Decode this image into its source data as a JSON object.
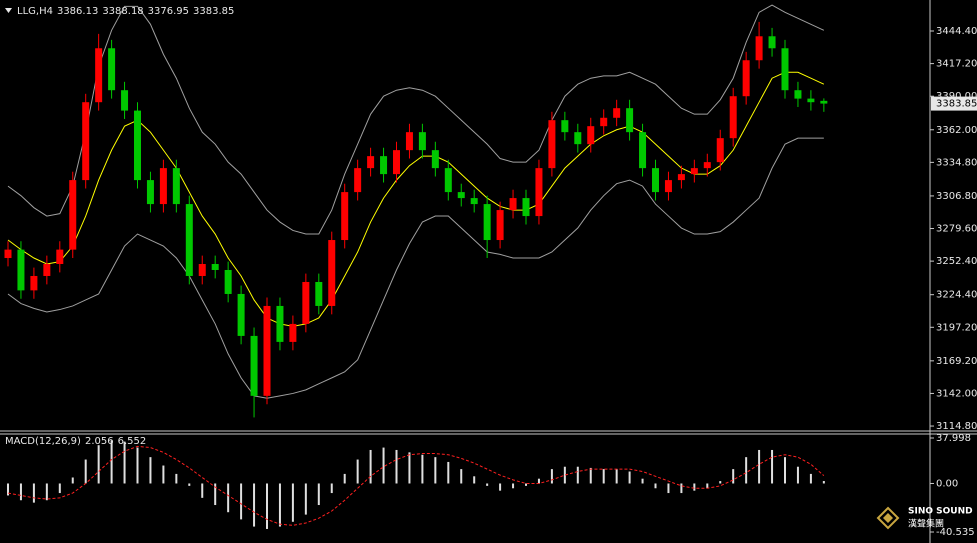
{
  "chart_data": [
    {
      "type": "candlestick",
      "title": "LLG,H4",
      "up_color": "#ff0000",
      "down_color": "#00c800",
      "open": [
        3255,
        3262,
        3228,
        3240,
        3250,
        3262,
        3320,
        3385,
        3430,
        3395,
        3378,
        3320,
        3300,
        3330,
        3300,
        3240,
        3250,
        3245,
        3225,
        3190,
        3140,
        3215,
        3185,
        3200,
        3235,
        3215,
        3270,
        3310,
        3330,
        3340,
        3325,
        3345,
        3360,
        3345,
        3330,
        3310,
        3305,
        3300,
        3270,
        3295,
        3305,
        3290,
        3330,
        3370,
        3360,
        3350,
        3365,
        3372,
        3380,
        3360,
        3330,
        3310,
        3320,
        3325,
        3330,
        3335,
        3355,
        3390,
        3420,
        3440,
        3430,
        3395,
        3388,
        3386.13
      ],
      "high": [
        3269,
        3269,
        3247,
        3257,
        3269,
        3327,
        3392,
        3442,
        3437,
        3402,
        3385,
        3327,
        3337,
        3337,
        3307,
        3257,
        3257,
        3252,
        3232,
        3197,
        3222,
        3222,
        3207,
        3242,
        3242,
        3277,
        3317,
        3337,
        3347,
        3347,
        3352,
        3367,
        3367,
        3352,
        3337,
        3317,
        3312,
        3307,
        3302,
        3312,
        3312,
        3337,
        3377,
        3377,
        3367,
        3372,
        3379,
        3387,
        3387,
        3367,
        3337,
        3327,
        3332,
        3337,
        3342,
        3362,
        3397,
        3427,
        3452,
        3447,
        3437,
        3402,
        3395,
        3388.18
      ],
      "low": [
        3248,
        3221,
        3221,
        3233,
        3243,
        3255,
        3313,
        3378,
        3388,
        3371,
        3313,
        3293,
        3293,
        3293,
        3233,
        3233,
        3238,
        3218,
        3183,
        3122,
        3133,
        3178,
        3178,
        3193,
        3208,
        3208,
        3263,
        3303,
        3323,
        3318,
        3318,
        3338,
        3338,
        3323,
        3303,
        3298,
        3293,
        3255,
        3263,
        3288,
        3283,
        3283,
        3323,
        3353,
        3343,
        3343,
        3358,
        3365,
        3353,
        3323,
        3303,
        3303,
        3313,
        3318,
        3323,
        3328,
        3348,
        3383,
        3413,
        3423,
        3388,
        3381,
        3378,
        3376.95
      ],
      "close": [
        3262,
        3228,
        3240,
        3250,
        3262,
        3320,
        3385,
        3430,
        3395,
        3378,
        3320,
        3300,
        3330,
        3300,
        3240,
        3250,
        3245,
        3225,
        3190,
        3140,
        3215,
        3185,
        3200,
        3235,
        3215,
        3270,
        3310,
        3330,
        3340,
        3325,
        3345,
        3360,
        3345,
        3330,
        3310,
        3305,
        3300,
        3270,
        3295,
        3305,
        3290,
        3330,
        3370,
        3360,
        3350,
        3365,
        3372,
        3380,
        3360,
        3330,
        3310,
        3320,
        3325,
        3330,
        3335,
        3355,
        3390,
        3420,
        3440,
        3430,
        3395,
        3388,
        3385,
        3383.85
      ],
      "bands": {
        "color": "#a0a0a0",
        "middle_color": "#ffff00",
        "upper": [
          3315,
          3307,
          3297,
          3290,
          3292,
          3315,
          3360,
          3415,
          3445,
          3465,
          3465,
          3450,
          3425,
          3405,
          3380,
          3360,
          3350,
          3335,
          3325,
          3310,
          3295,
          3285,
          3278,
          3275,
          3275,
          3295,
          3325,
          3350,
          3375,
          3390,
          3395,
          3397,
          3395,
          3390,
          3380,
          3370,
          3360,
          3350,
          3338,
          3335,
          3335,
          3345,
          3370,
          3390,
          3400,
          3405,
          3407,
          3407,
          3410,
          3405,
          3400,
          3390,
          3380,
          3375,
          3375,
          3387,
          3405,
          3435,
          3460,
          3466,
          3460,
          3455,
          3450,
          3445
        ],
        "middle": [
          3270,
          3262,
          3255,
          3250,
          3252,
          3265,
          3290,
          3320,
          3345,
          3365,
          3370,
          3360,
          3345,
          3330,
          3310,
          3290,
          3275,
          3255,
          3240,
          3220,
          3205,
          3200,
          3198,
          3200,
          3205,
          3220,
          3240,
          3260,
          3285,
          3305,
          3320,
          3332,
          3340,
          3340,
          3335,
          3325,
          3315,
          3305,
          3298,
          3295,
          3295,
          3300,
          3315,
          3330,
          3340,
          3350,
          3357,
          3362,
          3365,
          3360,
          3350,
          3340,
          3330,
          3325,
          3325,
          3332,
          3345,
          3365,
          3385,
          3405,
          3410,
          3410,
          3405,
          3400
        ],
        "lower": [
          3225,
          3217,
          3213,
          3210,
          3212,
          3215,
          3220,
          3225,
          3245,
          3265,
          3275,
          3270,
          3265,
          3255,
          3240,
          3220,
          3200,
          3175,
          3155,
          3140,
          3138,
          3140,
          3142,
          3145,
          3150,
          3155,
          3160,
          3170,
          3195,
          3220,
          3245,
          3267,
          3285,
          3290,
          3290,
          3280,
          3270,
          3260,
          3258,
          3255,
          3255,
          3255,
          3260,
          3270,
          3280,
          3295,
          3307,
          3317,
          3320,
          3315,
          3300,
          3290,
          3280,
          3275,
          3275,
          3277,
          3285,
          3295,
          3305,
          3330,
          3350,
          3355,
          3355,
          3355
        ]
      },
      "ylim": [
        3111.5,
        3468.6
      ],
      "yticks": [
        {
          "value": 3444.4,
          "label": "3444.40"
        },
        {
          "value": 3417.2,
          "label": "3417.20"
        },
        {
          "value": 3390,
          "label": "3390.00"
        },
        {
          "value": 3362,
          "label": "3362.00"
        },
        {
          "value": 3334.8,
          "label": "3334.80"
        },
        {
          "value": 3306.8,
          "label": "3306.80"
        },
        {
          "value": 3279.6,
          "label": "3279.60"
        },
        {
          "value": 3252.4,
          "label": "3252.40"
        },
        {
          "value": 3224.4,
          "label": "3224.40"
        },
        {
          "value": 3197.2,
          "label": "3197.20"
        },
        {
          "value": 3169.2,
          "label": "3169.20"
        },
        {
          "value": 3142,
          "label": "3142.00"
        },
        {
          "value": 3114.8,
          "label": "3114.80"
        }
      ]
    },
    {
      "type": "macd",
      "title": "MACD(12,26,9)",
      "color": "#e0e0e0",
      "signal_color": "#ff2020",
      "values": [
        -10,
        -14,
        -16,
        -14,
        -8,
        5,
        20,
        32,
        36,
        35,
        30,
        22,
        15,
        8,
        -2,
        -12,
        -18,
        -24,
        -30,
        -36,
        -38,
        -36,
        -32,
        -26,
        -18,
        -8,
        8,
        20,
        28,
        30,
        28,
        26,
        24,
        22,
        18,
        12,
        6,
        -2,
        -6,
        -4,
        -2,
        4,
        12,
        14,
        14,
        13,
        12,
        12,
        10,
        4,
        -4,
        -8,
        -8,
        -6,
        -4,
        2,
        12,
        22,
        28,
        28,
        22,
        14,
        8,
        2.056
      ],
      "signal": [
        -8,
        -10,
        -12,
        -13,
        -12,
        -8,
        0,
        10,
        20,
        27,
        31,
        30,
        26,
        20,
        13,
        5,
        -3,
        -10,
        -17,
        -24,
        -30,
        -34,
        -35,
        -33,
        -29,
        -23,
        -14,
        -4,
        6,
        14,
        20,
        24,
        25,
        25,
        24,
        21,
        17,
        12,
        7,
        3,
        0,
        0,
        3,
        7,
        10,
        12,
        12,
        12,
        12,
        10,
        6,
        2,
        -2,
        -4,
        -4,
        -2,
        3,
        9,
        16,
        22,
        24,
        22,
        16,
        6.552
      ],
      "ylim": [
        -40.535,
        37.998
      ],
      "yticks": [
        37.998,
        {
          "value": 0,
          "label": "0.00"
        },
        -40.535
      ]
    }
  ],
  "watermark": {
    "name": "SINO SOUND",
    "subname": "漢聲集團"
  }
}
